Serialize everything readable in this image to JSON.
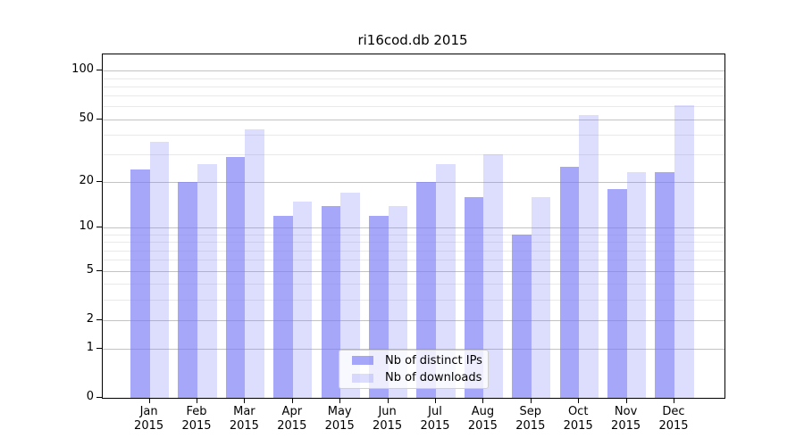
{
  "chart_data": {
    "type": "bar",
    "title": "ri16cod.db 2015",
    "categories": [
      "Jan",
      "Feb",
      "Mar",
      "Apr",
      "May",
      "Jun",
      "Jul",
      "Aug",
      "Sep",
      "Oct",
      "Nov",
      "Dec"
    ],
    "year_label": "2015",
    "series": [
      {
        "name": "Nb of distinct IPs",
        "color": "rgba(122,122,246,0.66)",
        "values": [
          24,
          20,
          29,
          12,
          14,
          12,
          20,
          16,
          9,
          25,
          18,
          23
        ]
      },
      {
        "name": "Nb of downloads",
        "color": "rgba(122,122,246,0.26)",
        "values": [
          36,
          26,
          43,
          15,
          17,
          14,
          26,
          30,
          16,
          53,
          23,
          61
        ]
      }
    ],
    "xlabel": "",
    "ylabel": "",
    "yscale": "log1p",
    "y_major_ticks": [
      100,
      50,
      20,
      10,
      5,
      2,
      1,
      0
    ],
    "y_minor_ticks": [
      3,
      4,
      6,
      7,
      8,
      9,
      30,
      40,
      60,
      70,
      80,
      90
    ],
    "ylim": [
      0,
      127
    ],
    "grid": "both",
    "legend_position": "lower center",
    "colors": {
      "major_grid": "#c3c3c3",
      "minor_grid": "#e9e9e9",
      "axis": "#000000",
      "background": "#ffffff"
    }
  }
}
